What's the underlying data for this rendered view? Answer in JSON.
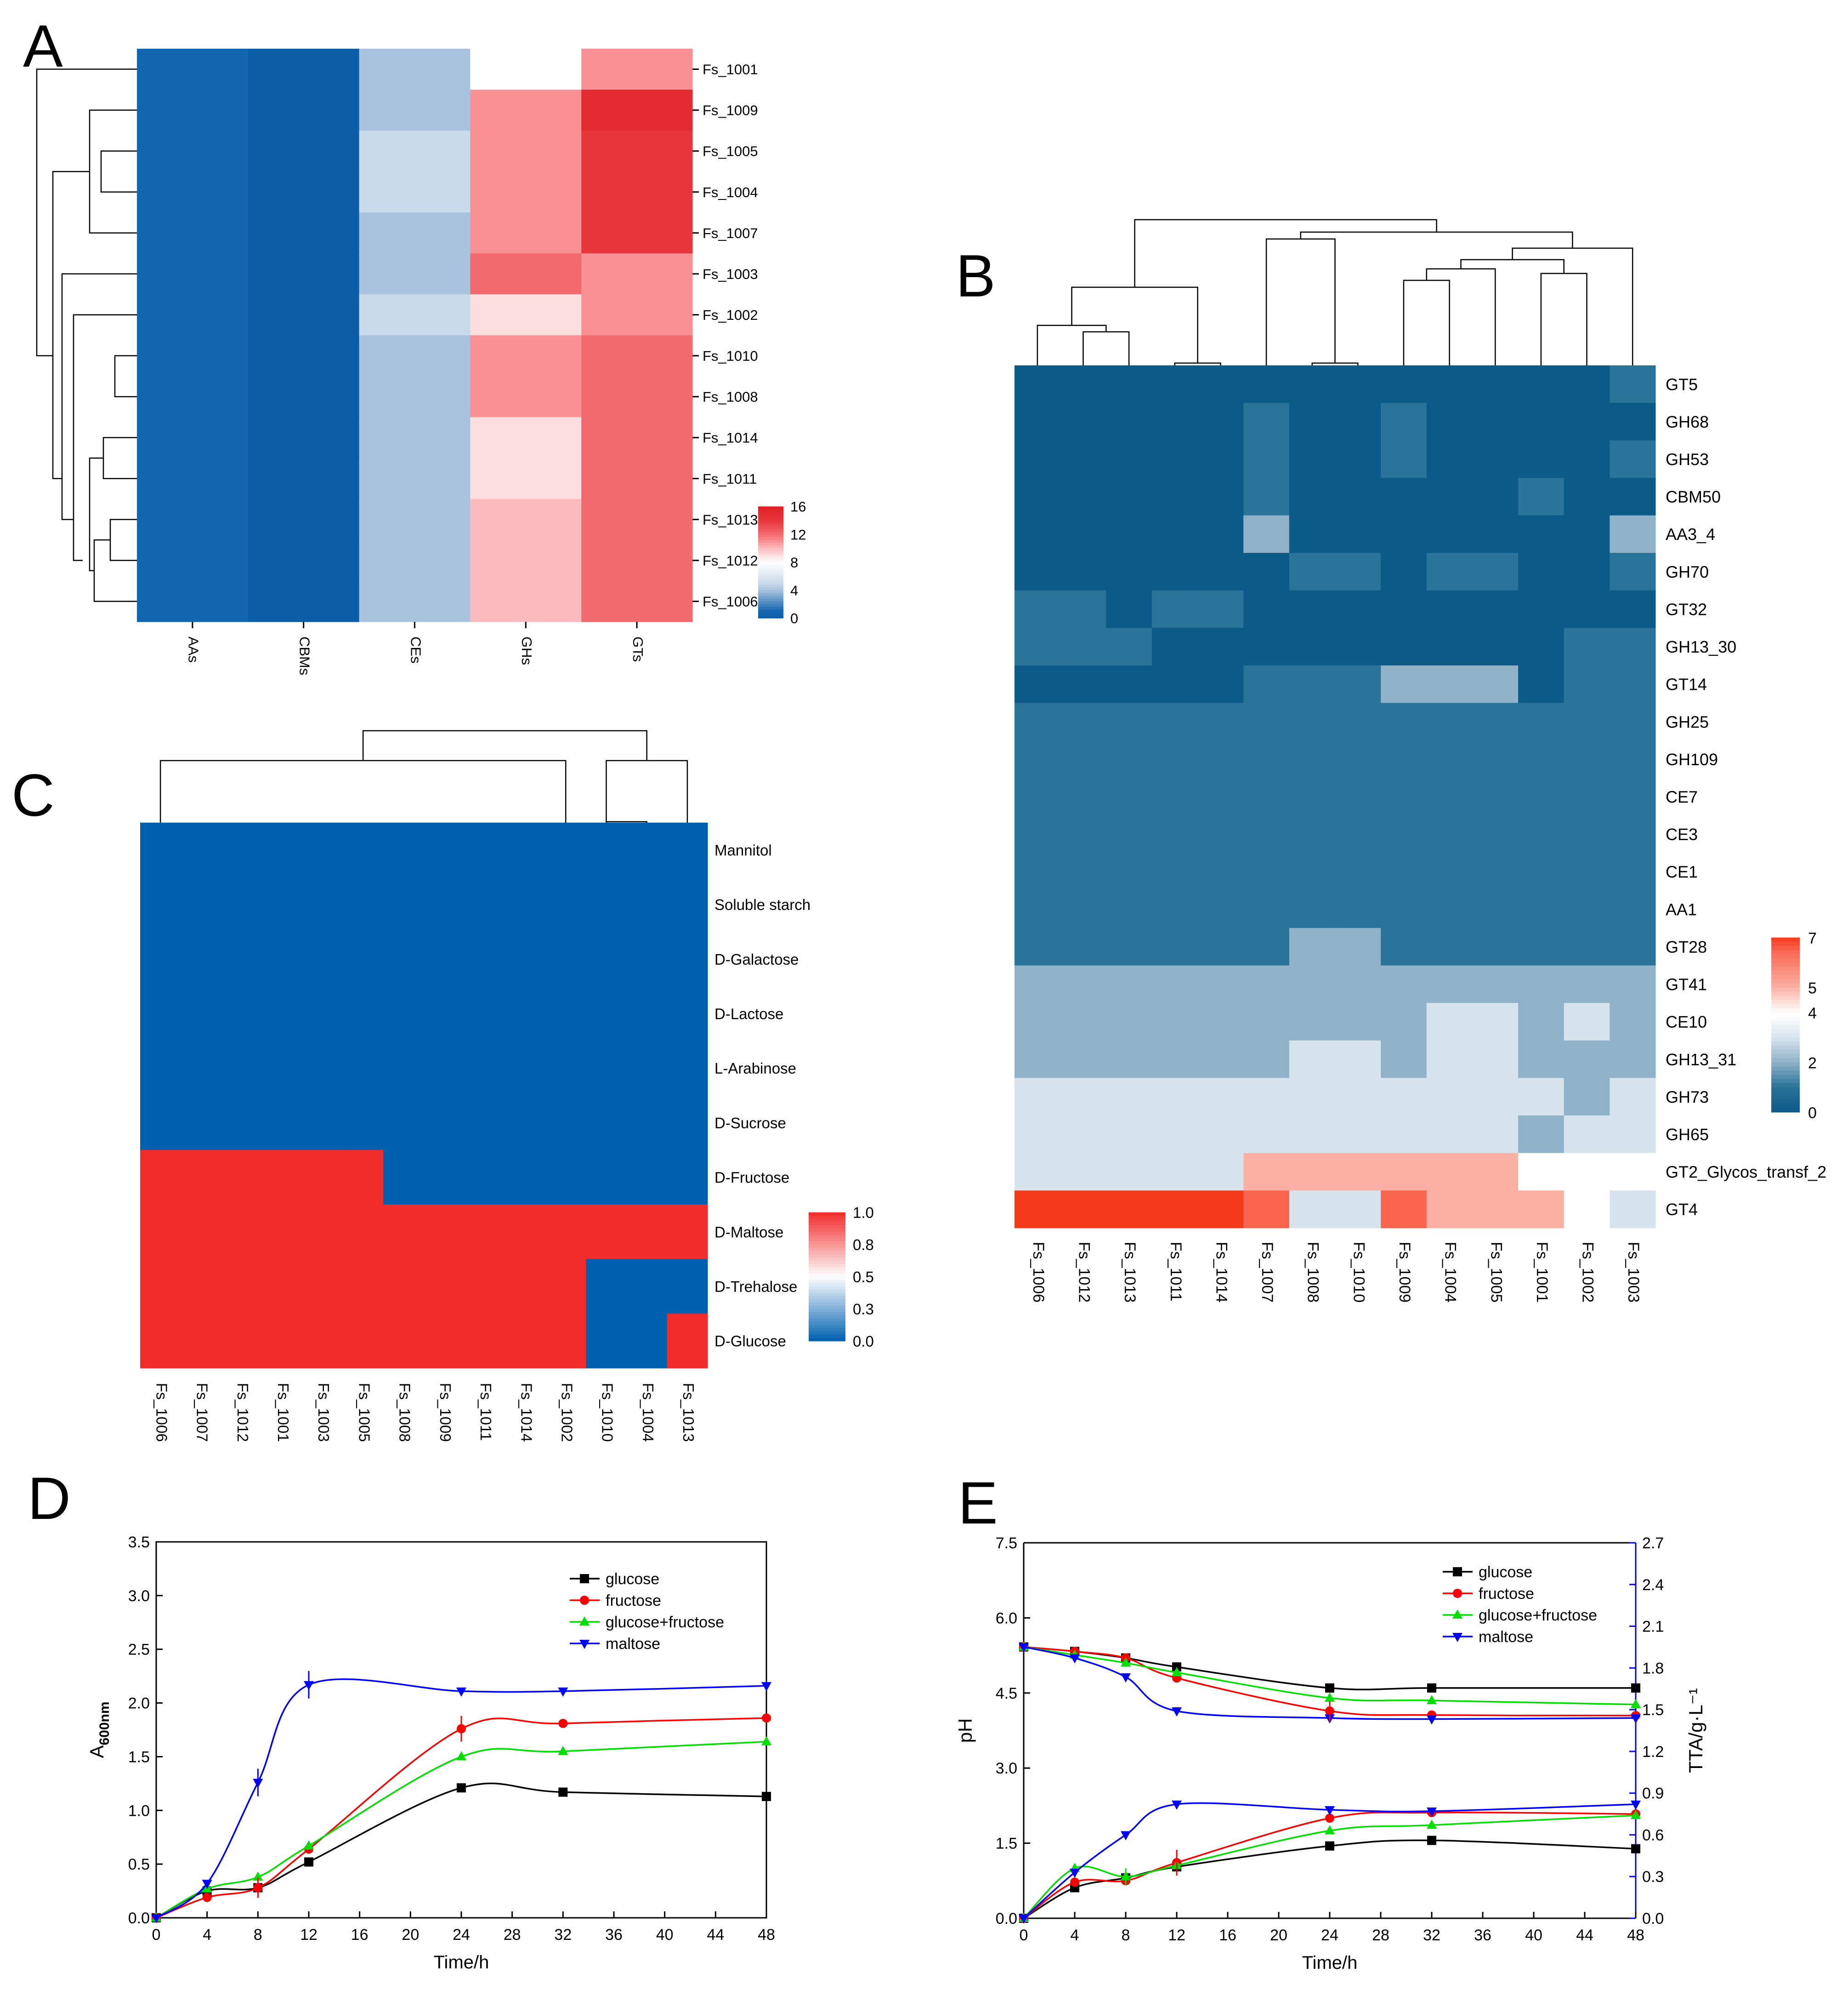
{
  "chart_data": [
    {
      "panel": "A",
      "type": "heatmap",
      "columns": [
        "AAs",
        "CBMs",
        "CEs",
        "GHs",
        "GTs"
      ],
      "rows": [
        "Fs_1001",
        "Fs_1009",
        "Fs_1005",
        "Fs_1004",
        "Fs_1007",
        "Fs_1003",
        "Fs_1002",
        "Fs_1010",
        "Fs_1008",
        "Fs_1014",
        "Fs_1011",
        "Fs_1013",
        "Fs_1012",
        "Fs_1006"
      ],
      "values": [
        [
          1,
          0,
          4,
          8,
          11
        ],
        [
          1,
          0,
          4,
          11,
          15
        ],
        [
          1,
          0,
          5,
          11,
          14
        ],
        [
          1,
          0,
          5,
          11,
          14
        ],
        [
          1,
          0,
          4,
          11,
          14
        ],
        [
          1,
          0,
          4,
          12,
          11
        ],
        [
          1,
          0,
          5,
          9,
          11
        ],
        [
          1,
          0,
          4,
          11,
          12
        ],
        [
          1,
          0,
          4,
          11,
          12
        ],
        [
          1,
          0,
          4,
          9,
          12
        ],
        [
          1,
          0,
          4,
          9,
          12
        ],
        [
          1,
          0,
          4,
          10,
          12
        ],
        [
          1,
          0,
          4,
          10,
          12
        ],
        [
          1,
          0,
          4,
          10,
          12
        ]
      ],
      "colorbar": {
        "ticks": [
          "16",
          "12",
          "8",
          "4",
          "0"
        ],
        "min": 0,
        "max": 16
      }
    },
    {
      "panel": "B",
      "type": "heatmap",
      "columns": [
        "Fs_1006",
        "Fs_1012",
        "Fs_1013",
        "Fs_1011",
        "Fs_1014",
        "Fs_1007",
        "Fs_1008",
        "Fs_1010",
        "Fs_1009",
        "Fs_1004",
        "Fs_1005",
        "Fs_1001",
        "Fs_1002",
        "Fs_1003"
      ],
      "rows": [
        "GT5",
        "GH68",
        "GH53",
        "CBM50",
        "AA3_4",
        "GH70",
        "GT32",
        "GH13_30",
        "GT14",
        "GH25",
        "GH109",
        "CE7",
        "CE3",
        "CE1",
        "AA1",
        "GT28",
        "GT41",
        "CE10",
        "GH13_31",
        "GH73",
        "GH65",
        "GT2_Glycos_transf_2",
        "GT4"
      ],
      "values": [
        [
          0,
          0,
          0,
          0,
          0,
          0,
          0,
          0,
          0,
          0,
          0,
          0,
          0,
          1
        ],
        [
          0,
          0,
          0,
          0,
          0,
          1,
          0,
          0,
          1,
          0,
          0,
          0,
          0,
          0
        ],
        [
          0,
          0,
          0,
          0,
          0,
          1,
          0,
          0,
          1,
          0,
          0,
          0,
          0,
          1
        ],
        [
          0,
          0,
          0,
          0,
          0,
          1,
          0,
          0,
          0,
          0,
          0,
          1,
          0,
          0
        ],
        [
          0,
          0,
          0,
          0,
          0,
          2,
          0,
          0,
          0,
          0,
          0,
          0,
          0,
          2
        ],
        [
          0,
          0,
          0,
          0,
          0,
          0,
          1,
          1,
          0,
          1,
          1,
          0,
          0,
          1
        ],
        [
          1,
          1,
          0,
          1,
          1,
          0,
          0,
          0,
          0,
          0,
          0,
          0,
          0,
          0
        ],
        [
          1,
          1,
          1,
          0,
          0,
          0,
          0,
          0,
          0,
          0,
          0,
          0,
          1,
          1
        ],
        [
          0,
          0,
          0,
          0,
          0,
          1,
          1,
          1,
          2,
          2,
          2,
          0,
          1,
          1
        ],
        [
          1,
          1,
          1,
          1,
          1,
          1,
          1,
          1,
          1,
          1,
          1,
          1,
          1,
          1
        ],
        [
          1,
          1,
          1,
          1,
          1,
          1,
          1,
          1,
          1,
          1,
          1,
          1,
          1,
          1
        ],
        [
          1,
          1,
          1,
          1,
          1,
          1,
          1,
          1,
          1,
          1,
          1,
          1,
          1,
          1
        ],
        [
          1,
          1,
          1,
          1,
          1,
          1,
          1,
          1,
          1,
          1,
          1,
          1,
          1,
          1
        ],
        [
          1,
          1,
          1,
          1,
          1,
          1,
          1,
          1,
          1,
          1,
          1,
          1,
          1,
          1
        ],
        [
          1,
          1,
          1,
          1,
          1,
          1,
          1,
          1,
          1,
          1,
          1,
          1,
          1,
          1
        ],
        [
          1,
          1,
          1,
          1,
          1,
          1,
          2,
          2,
          1,
          1,
          1,
          1,
          1,
          1
        ],
        [
          2,
          2,
          2,
          2,
          2,
          2,
          2,
          2,
          2,
          2,
          2,
          2,
          2,
          2
        ],
        [
          2,
          2,
          2,
          2,
          2,
          2,
          2,
          2,
          2,
          3,
          3,
          2,
          3,
          2
        ],
        [
          2,
          2,
          2,
          2,
          2,
          2,
          3,
          3,
          2,
          3,
          3,
          2,
          2,
          2
        ],
        [
          3,
          3,
          3,
          3,
          3,
          3,
          3,
          3,
          3,
          3,
          3,
          3,
          2,
          3
        ],
        [
          3,
          3,
          3,
          3,
          3,
          3,
          3,
          3,
          3,
          3,
          3,
          2,
          3,
          3
        ],
        [
          3,
          3,
          3,
          3,
          3,
          5,
          5,
          5,
          5,
          5,
          5,
          4,
          4,
          4
        ],
        [
          7,
          7,
          7,
          7,
          7,
          6.5,
          3,
          3,
          6.5,
          5,
          5,
          5,
          4,
          3
        ]
      ],
      "colorbar": {
        "ticks": [
          "7",
          "5",
          "4",
          "2",
          "0"
        ],
        "min": 0,
        "max": 7
      }
    },
    {
      "panel": "C",
      "type": "heatmap",
      "columns": [
        "Fs_1006",
        "Fs_1007",
        "Fs_1012",
        "Fs_1001",
        "Fs_1003",
        "Fs_1005",
        "Fs_1008",
        "Fs_1009",
        "Fs_1011",
        "Fs_1014",
        "Fs_1002",
        "Fs_1010",
        "Fs_1004",
        "Fs_1013"
      ],
      "rows": [
        "Mannitol",
        "Soluble starch",
        "D-Galactose",
        "D-Lactose",
        "L-Arabinose",
        "D-Sucrose",
        "D-Fructose",
        "D-Maltose",
        "D-Trehalose",
        "D-Glucose"
      ],
      "values": [
        [
          0,
          0,
          0,
          0,
          0,
          0,
          0,
          0,
          0,
          0,
          0,
          0,
          0,
          0
        ],
        [
          0,
          0,
          0,
          0,
          0,
          0,
          0,
          0,
          0,
          0,
          0,
          0,
          0,
          0
        ],
        [
          0,
          0,
          0,
          0,
          0,
          0,
          0,
          0,
          0,
          0,
          0,
          0,
          0,
          0
        ],
        [
          0,
          0,
          0,
          0,
          0,
          0,
          0,
          0,
          0,
          0,
          0,
          0,
          0,
          0
        ],
        [
          0,
          0,
          0,
          0,
          0,
          0,
          0,
          0,
          0,
          0,
          0,
          0,
          0,
          0
        ],
        [
          0,
          0,
          0,
          0,
          0,
          0,
          0,
          0,
          0,
          0,
          0,
          0,
          0,
          0
        ],
        [
          1,
          1,
          1,
          1,
          1,
          1,
          0,
          0,
          0,
          0,
          0,
          0,
          0,
          0
        ],
        [
          1,
          1,
          1,
          1,
          1,
          1,
          1,
          1,
          1,
          1,
          1,
          1,
          1,
          1
        ],
        [
          1,
          1,
          1,
          1,
          1,
          1,
          1,
          1,
          1,
          1,
          1,
          0,
          0,
          0
        ],
        [
          1,
          1,
          1,
          1,
          1,
          1,
          1,
          1,
          1,
          1,
          1,
          0,
          0,
          1
        ]
      ],
      "colorbar": {
        "ticks": [
          "1.0",
          "0.8",
          "0.5",
          "0.3",
          "0.0"
        ],
        "min": 0,
        "max": 1
      }
    },
    {
      "panel": "D",
      "type": "line",
      "x": [
        0,
        4,
        8,
        12,
        24,
        32,
        48
      ],
      "xticks": [
        "0",
        "4",
        "8",
        "12",
        "16",
        "20",
        "24",
        "28",
        "32",
        "36",
        "40",
        "44",
        "48"
      ],
      "yticks": [
        "0.0",
        "0.5",
        "1.0",
        "1.5",
        "2.0",
        "2.5",
        "3.0",
        "3.5"
      ],
      "xlabel": "Time/h",
      "ylabel_main": "A",
      "ylabel_sub": "600nm",
      "xlim": [
        0,
        48
      ],
      "ylim": [
        0,
        3.5
      ],
      "series": [
        {
          "name": "glucose",
          "color": "#000000",
          "marker": "square",
          "values": [
            0,
            0.25,
            0.28,
            0.52,
            1.21,
            1.17,
            1.13
          ]
        },
        {
          "name": "fructose",
          "color": "#ff0000",
          "marker": "circle",
          "values": [
            0,
            0.19,
            0.28,
            0.64,
            1.76,
            1.81,
            1.86
          ]
        },
        {
          "name": "glucose+fructose",
          "color": "#00e000",
          "marker": "triangle-up",
          "values": [
            0,
            0.27,
            0.38,
            0.67,
            1.5,
            1.55,
            1.64
          ]
        },
        {
          "name": "maltose",
          "color": "#0000ff",
          "marker": "triangle-down",
          "values": [
            0,
            0.32,
            1.26,
            2.17,
            2.11,
            2.11,
            2.16
          ]
        }
      ]
    },
    {
      "panel": "E",
      "type": "line",
      "x": [
        0,
        4,
        8,
        12,
        24,
        32,
        48
      ],
      "xticks": [
        "0",
        "4",
        "8",
        "12",
        "16",
        "20",
        "24",
        "28",
        "32",
        "36",
        "40",
        "44",
        "48"
      ],
      "yticks_left": [
        "0.0",
        "1.5",
        "3.0",
        "4.5",
        "6.0",
        "7.5"
      ],
      "yticks_right": [
        "0.0",
        "0.3",
        "0.6",
        "0.9",
        "1.2",
        "1.5",
        "1.8",
        "2.1",
        "2.4",
        "2.7"
      ],
      "xlabel": "Time/h",
      "ylabel_left": "pH",
      "ylabel_right": "TTA/g·L⁻¹",
      "xlim": [
        0,
        48
      ],
      "ylim_left": [
        0,
        7.5
      ],
      "ylim_right": [
        0,
        2.7
      ],
      "series_ph": [
        {
          "name": "glucose",
          "color": "#000000",
          "marker": "square",
          "values": [
            5.42,
            5.33,
            5.2,
            5.02,
            4.6,
            4.6,
            4.6
          ]
        },
        {
          "name": "fructose",
          "color": "#ff0000",
          "marker": "circle",
          "values": [
            5.42,
            5.33,
            5.2,
            4.8,
            4.14,
            4.06,
            4.05
          ]
        },
        {
          "name": "glucose+fructose",
          "color": "#00e000",
          "marker": "triangle-up",
          "values": [
            5.42,
            5.26,
            5.1,
            4.91,
            4.4,
            4.35,
            4.27
          ]
        },
        {
          "name": "maltose",
          "color": "#0000ff",
          "marker": "triangle-down",
          "values": [
            5.42,
            5.2,
            4.82,
            4.14,
            4.0,
            3.98,
            4.0
          ]
        }
      ],
      "series_tta": [
        {
          "name": "glucose",
          "color": "#000000",
          "marker": "square",
          "values": [
            0,
            0.22,
            0.29,
            0.37,
            0.52,
            0.56,
            0.5
          ]
        },
        {
          "name": "fructose",
          "color": "#ff0000",
          "marker": "circle",
          "values": [
            0,
            0.26,
            0.27,
            0.4,
            0.72,
            0.76,
            0.75
          ]
        },
        {
          "name": "glucose+fructose",
          "color": "#00e000",
          "marker": "triangle-up",
          "values": [
            0,
            0.36,
            0.3,
            0.38,
            0.63,
            0.67,
            0.74
          ]
        },
        {
          "name": "maltose",
          "color": "#0000ff",
          "marker": "triangle-down",
          "values": [
            0,
            0.33,
            0.6,
            0.82,
            0.78,
            0.77,
            0.82
          ]
        }
      ]
    }
  ],
  "panels": {
    "A": "A",
    "B": "B",
    "C": "C",
    "D": "D",
    "E": "E"
  }
}
